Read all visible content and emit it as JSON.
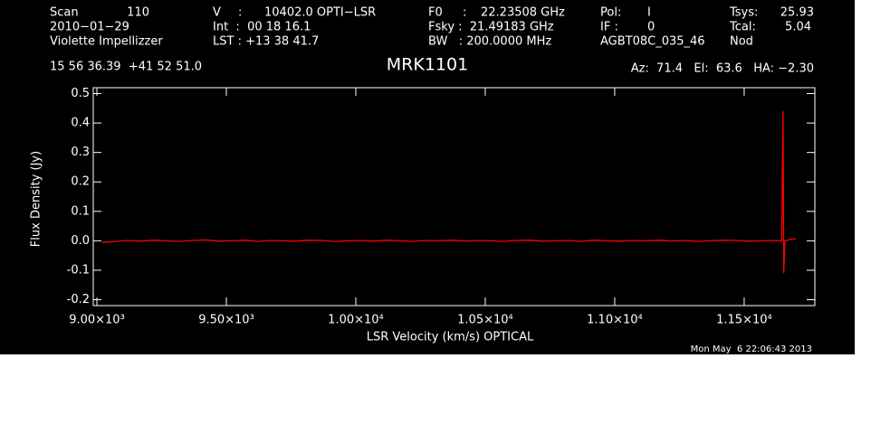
{
  "header": [
    "Scan",
    "110",
    "V",
    ":",
    "10402.0 OPTI−LSR",
    "F0",
    ":",
    "22.23508 GHz",
    "Pol:",
    "I",
    "Tsys:",
    "25.93",
    "2010−01−29",
    "Int  :  00 18 16.1",
    "Fsky :  21.49183 GHz",
    "IF :",
    "0",
    "Tcal:",
    "5.04",
    "Violette Impellizzer",
    "LST : +13 38 41.7",
    "BW   : 200.0000 MHz",
    "AGBT08C_035_46",
    "Nod",
    "15 56 36.39  +41 52 51.0",
    "Az:  71.4   El:  63.6   HA: −2.30",
    "Mon May  6 22:06:43 2013"
  ],
  "chart_data": {
    "type": "line",
    "title": "MRK1101",
    "x_label": "LSR Velocity (km/s) OPTICAL",
    "y_label": "Flux Density (Jy)",
    "color": "#ff0000",
    "x": [
      9020,
      9070,
      9120,
      9170,
      9220,
      9270,
      9320,
      9370,
      9420,
      9470,
      9520,
      9570,
      9620,
      9670,
      9720,
      9770,
      9820,
      9870,
      9920,
      9970,
      10020,
      10070,
      10120,
      10170,
      10220,
      10270,
      10320,
      10370,
      10420,
      10470,
      10520,
      10570,
      10620,
      10670,
      10720,
      10770,
      10820,
      10870,
      10920,
      10970,
      11020,
      11070,
      11120,
      11170,
      11220,
      11270,
      11320,
      11370,
      11420,
      11470,
      11520,
      11570,
      11620,
      11645,
      11650,
      11653,
      11657,
      11680,
      11700
    ],
    "values": [
      -0.006,
      -0.002,
      0.001,
      -0.001,
      0.002,
      0.0,
      -0.002,
      0.001,
      0.003,
      -0.001,
      0.0,
      0.002,
      -0.002,
      0.001,
      0.0,
      -0.001,
      0.002,
      0.001,
      -0.002,
      0.0,
      0.001,
      -0.001,
      0.002,
      0.0,
      -0.002,
      0.001,
      0.0,
      0.002,
      -0.001,
      0.001,
      0.0,
      -0.002,
      0.001,
      0.002,
      -0.001,
      0.0,
      0.001,
      -0.002,
      0.002,
      0.0,
      -0.001,
      0.001,
      0.0,
      0.002,
      -0.001,
      0.001,
      -0.002,
      0.0,
      0.002,
      0.001,
      -0.001,
      0.0,
      0.001,
      0.0,
      0.44,
      -0.11,
      0.0,
      0.005,
      0.008
    ],
    "xlim": [
      8986,
      11773
    ],
    "xticks": [
      {
        "value": 9000,
        "label": "9.00×10³"
      },
      {
        "value": 9500,
        "label": "9.50×10³"
      },
      {
        "value": 10000,
        "label": "1.00×10⁴"
      },
      {
        "value": 10500,
        "label": "1.05×10⁴"
      },
      {
        "value": 11000,
        "label": "1.10×10⁴"
      },
      {
        "value": 11500,
        "label": "1.15×10⁴"
      }
    ],
    "ylim": [
      -0.22,
      0.52
    ],
    "yticks": [
      -0.2,
      -0.1,
      {
        "value": 0,
        "label": "0.0"
      },
      0.1,
      0.2,
      0.3,
      0.4,
      0.5
    ]
  }
}
